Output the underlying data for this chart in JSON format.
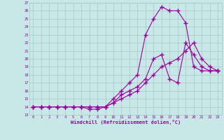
{
  "xlabel": "Windchill (Refroidissement éolien,°C)",
  "background_color": "#c8e8e8",
  "line_color": "#990099",
  "xlim": [
    -0.5,
    23.5
  ],
  "ylim": [
    13,
    27
  ],
  "xticks": [
    0,
    1,
    2,
    3,
    4,
    5,
    6,
    7,
    8,
    9,
    10,
    11,
    12,
    13,
    14,
    15,
    16,
    17,
    18,
    19,
    20,
    21,
    22,
    23
  ],
  "yticks": [
    13,
    14,
    15,
    16,
    17,
    18,
    19,
    20,
    21,
    22,
    23,
    24,
    25,
    26,
    27
  ],
  "line1_x": [
    0,
    1,
    2,
    3,
    4,
    5,
    6,
    7,
    8,
    9,
    10,
    11,
    12,
    13,
    14,
    15,
    16,
    17,
    18,
    19,
    20,
    21,
    22,
    23
  ],
  "line1_y": [
    14,
    14,
    14,
    14,
    14,
    14,
    14,
    13.7,
    13.7,
    14,
    14.5,
    15.5,
    16,
    16.5,
    17.5,
    20,
    20.5,
    17.5,
    17,
    22,
    20.5,
    19,
    18.5,
    18.5
  ],
  "line2_x": [
    0,
    1,
    2,
    3,
    4,
    5,
    6,
    7,
    8,
    9,
    10,
    11,
    12,
    13,
    14,
    15,
    16,
    17,
    18,
    19,
    20,
    21,
    22,
    23
  ],
  "line2_y": [
    14,
    14,
    14,
    14,
    14,
    14,
    14,
    14,
    14,
    14,
    15,
    16,
    17,
    18,
    23,
    25,
    26.5,
    26,
    26,
    24.5,
    19,
    18.5,
    18.5,
    18.5
  ],
  "line3_x": [
    0,
    1,
    2,
    3,
    4,
    5,
    6,
    7,
    8,
    9,
    10,
    11,
    12,
    13,
    14,
    15,
    16,
    17,
    18,
    19,
    20,
    21,
    22,
    23
  ],
  "line3_y": [
    14,
    14,
    14,
    14,
    14,
    14,
    14,
    14,
    14,
    14,
    14.5,
    15,
    15.5,
    16,
    17,
    18,
    19,
    19.5,
    20,
    21,
    22,
    20,
    19,
    18.5
  ]
}
